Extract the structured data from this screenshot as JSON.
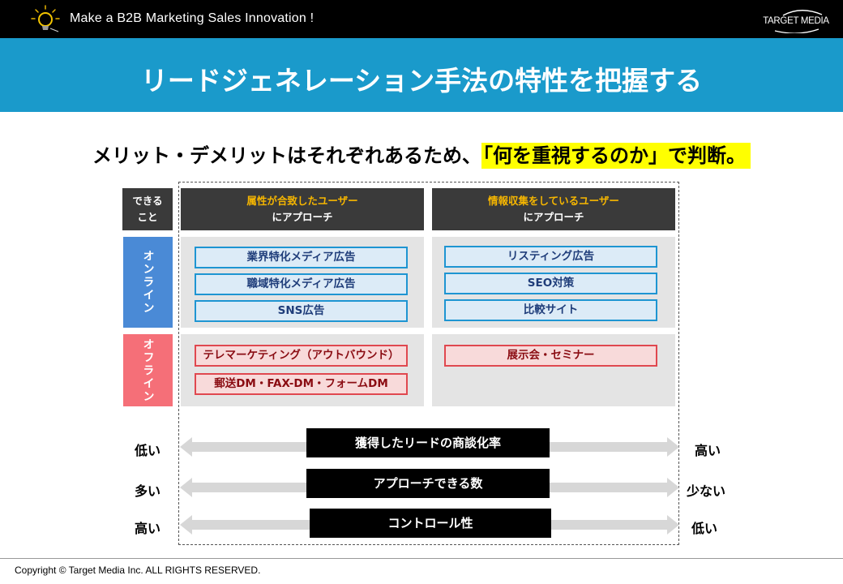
{
  "header": {
    "tagline": "Make a B2B Marketing Sales Innovation !",
    "logo_text": "TARGET MEDIA",
    "bulb_icon": "lightbulb-icon"
  },
  "title": "リードジェネレーション手法の特性を把握する",
  "subtitle": {
    "lead": "メリット・デメリットはそれぞれあるため、",
    "highlight": "「何を重視するのか」で判断。",
    "highlight_color": "#ffff00"
  },
  "matrix": {
    "corner_line1": "できる",
    "corner_line2": "こと",
    "col1_line1": "属性が合致したユーザー",
    "col1_line2": "にアプローチ",
    "col2_line1": "情報収集をしているユーザー",
    "col2_line2": "にアプローチ",
    "online_label": "オンライン",
    "offline_label": "オフライン",
    "online_col1": [
      "業界特化メディア広告",
      "職域特化メディア広告",
      "SNS広告"
    ],
    "online_col2": [
      "リスティング広告",
      "SEO対策",
      "比較サイト"
    ],
    "offline_col1": [
      "テレマーケティング（アウトバウンド）",
      "郵送DM・FAX-DM・フォームDM"
    ],
    "offline_col2": [
      "展示会・セミナー"
    ]
  },
  "scales": [
    {
      "label": "獲得したリードの商談化率",
      "left": "低い",
      "right": "高い"
    },
    {
      "label": "アプローチできる数",
      "left": "多い",
      "right": "少ない"
    },
    {
      "label": "コントロール性",
      "left": "高い",
      "right": "低い"
    }
  ],
  "colors": {
    "title_bar": "#1a9acb",
    "online": "#4a8ad6",
    "offline": "#f56f78",
    "header_accent": "#f6b600"
  },
  "footer": {
    "copyright": "Copyright © Target Media Inc. ALL RIGHTS RESERVED."
  }
}
